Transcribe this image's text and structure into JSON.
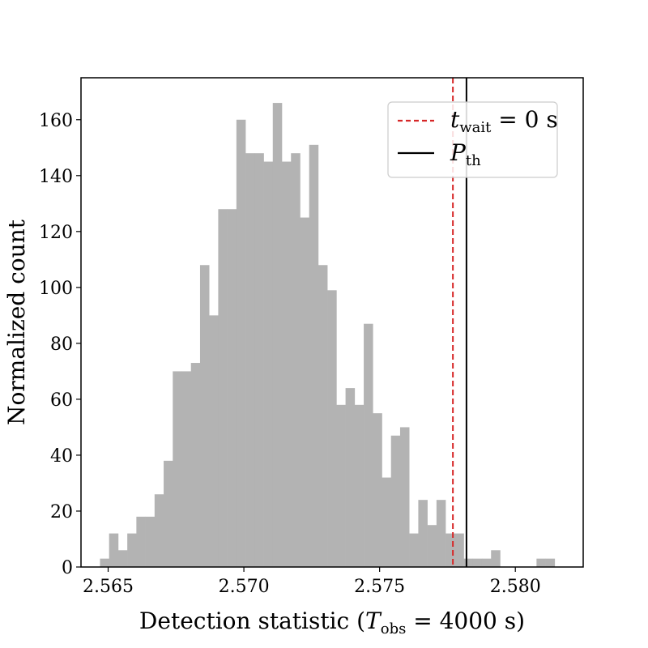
{
  "chart_data": {
    "type": "bar",
    "subtype": "histogram",
    "xlabel": "Detection statistic (T_obs = 4000 s)",
    "xlabel_parts": {
      "prefix": "Detection statistic (",
      "var": "T",
      "sub": "obs",
      "suffix": " = 4000 s)"
    },
    "ylabel": "Normalized count",
    "xlim": [
      2.564,
      2.5825
    ],
    "ylim": [
      0,
      175
    ],
    "xticks": [
      2.565,
      2.57,
      2.575,
      2.58
    ],
    "xtick_labels": [
      "2.565",
      "2.570",
      "2.575",
      "2.580"
    ],
    "yticks": [
      0,
      20,
      40,
      60,
      80,
      100,
      120,
      140,
      160
    ],
    "ytick_labels": [
      "0",
      "20",
      "40",
      "60",
      "80",
      "100",
      "120",
      "140",
      "160"
    ],
    "bin_start": 2.5647,
    "bin_width": 0.000335,
    "counts": [
      3,
      12,
      6,
      12,
      18,
      18,
      26,
      38,
      70,
      70,
      73,
      108,
      90,
      128,
      128,
      160,
      148,
      148,
      145,
      166,
      145,
      148,
      125,
      151,
      108,
      99,
      58,
      64,
      58,
      87,
      55,
      32,
      47,
      50,
      12,
      24,
      15,
      24,
      12,
      12,
      3,
      3,
      3,
      6,
      0,
      0,
      0,
      0,
      3,
      3
    ],
    "bar_color": "#b3b3b3",
    "vlines": [
      {
        "name": "t_wait = 0 s",
        "x": 2.5777,
        "color": "#d62728",
        "style": "dashed"
      },
      {
        "name": "P_th",
        "x": 2.5782,
        "color": "#000000",
        "style": "solid"
      }
    ],
    "legend": {
      "position": "top-right",
      "entries": [
        {
          "var": "t",
          "sub": "wait",
          "rest": " = 0 s"
        },
        {
          "var": "P",
          "sub": "th",
          "rest": ""
        }
      ]
    },
    "grid": false
  }
}
